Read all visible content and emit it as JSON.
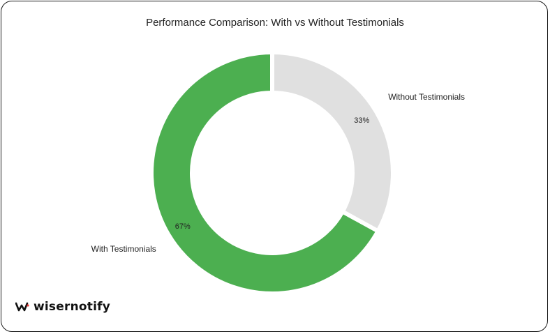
{
  "chart_data": {
    "type": "pie",
    "title": "Performance Comparison: With vs Without Testimonials",
    "categories": [
      "With Testimonials",
      "Without Testimonials"
    ],
    "values": [
      67,
      33
    ],
    "value_labels": [
      "67%",
      "33%"
    ],
    "colors": [
      "#4caf50",
      "#e0e0e0"
    ],
    "donut": true,
    "start_at": "top",
    "direction": "counterclockwise"
  },
  "brand": {
    "name": "wisernotify",
    "icon": "wisernotify-logo-icon"
  }
}
